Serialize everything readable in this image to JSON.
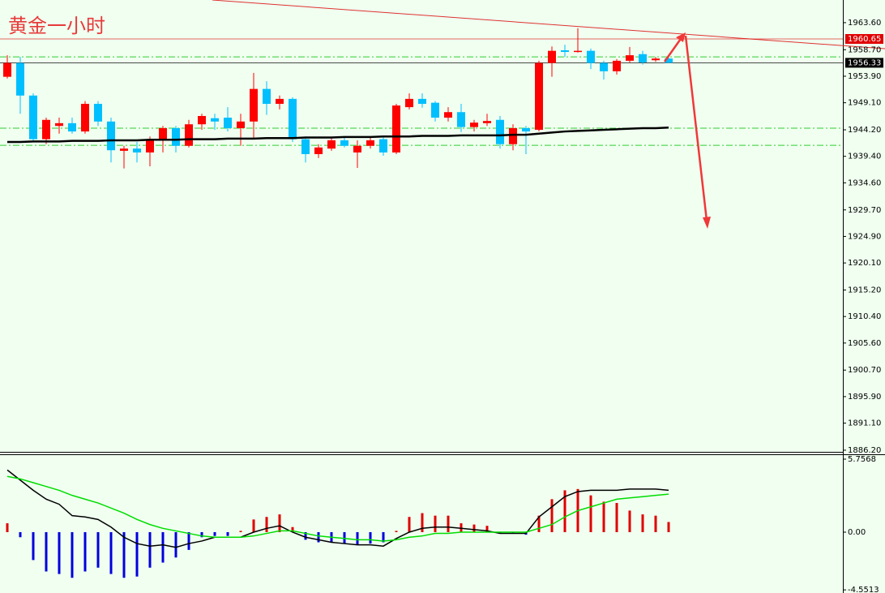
{
  "chart_data": [
    {
      "type": "candlestick",
      "title": "黄金一小时",
      "open": [
        1953.8,
        1956.3,
        1950.4,
        1942.5,
        1944.9,
        1945.4,
        1943.9,
        1948.9,
        1945.7,
        1940.4,
        1940.8,
        1940.1,
        1942.5,
        1944.5,
        1941.3,
        1945.2,
        1946.3,
        1946.4,
        1944.5,
        1945.7,
        1951.6,
        1948.9,
        1949.8,
        1942.5,
        1939.8,
        1940.8,
        1942.3,
        1940.1,
        1941.3,
        1942.5,
        1940.1,
        1948.3,
        1949.8,
        1949.1,
        1946.4,
        1947.4,
        1944.7,
        1945.4,
        1946.0,
        1941.6,
        1944.5,
        1944.2,
        1956.3,
        1958.6,
        1958.3,
        1958.5,
        1956.3,
        1954.8,
        1956.7,
        1957.9,
        1956.8,
        1957.1
      ],
      "high": [
        1957.7,
        1957.4,
        1950.8,
        1946.4,
        1946.4,
        1946.4,
        1949.4,
        1949.4,
        1946.4,
        1941.3,
        1942.0,
        1943.0,
        1944.9,
        1944.9,
        1946.0,
        1947.1,
        1947.1,
        1948.3,
        1947.1,
        1954.5,
        1953.0,
        1950.4,
        1950.1,
        1943.0,
        1941.6,
        1942.7,
        1943.0,
        1942.3,
        1943.0,
        1943.0,
        1948.9,
        1950.8,
        1950.8,
        1949.4,
        1948.3,
        1948.9,
        1946.0,
        1947.1,
        1946.7,
        1945.2,
        1944.9,
        1956.7,
        1959.3,
        1959.6,
        1962.6,
        1958.9,
        1956.7,
        1957.0,
        1959.2,
        1958.5,
        1957.4,
        1957.4
      ],
      "low": [
        1953.5,
        1947.1,
        1942.0,
        1941.6,
        1943.5,
        1943.5,
        1943.5,
        1944.9,
        1938.3,
        1937.2,
        1938.3,
        1937.6,
        1940.1,
        1940.1,
        1941.0,
        1944.2,
        1944.2,
        1943.9,
        1941.3,
        1942.7,
        1946.9,
        1947.9,
        1942.0,
        1938.3,
        1939.1,
        1940.4,
        1941.0,
        1937.3,
        1940.8,
        1939.5,
        1939.8,
        1947.9,
        1948.2,
        1945.7,
        1945.7,
        1943.8,
        1943.9,
        1944.9,
        1940.8,
        1940.5,
        1939.8,
        1943.9,
        1953.8,
        1957.4,
        1958.2,
        1955.2,
        1953.3,
        1954.2,
        1956.3,
        1956.0,
        1956.5,
        1956.3
      ],
      "close": [
        1956.3,
        1950.4,
        1942.5,
        1946.0,
        1945.4,
        1943.9,
        1948.9,
        1945.7,
        1940.5,
        1940.8,
        1940.1,
        1942.5,
        1944.5,
        1941.3,
        1945.2,
        1946.7,
        1945.7,
        1944.5,
        1945.7,
        1951.6,
        1948.9,
        1949.8,
        1942.5,
        1939.8,
        1941.0,
        1942.3,
        1941.3,
        1941.3,
        1942.3,
        1940.1,
        1948.6,
        1949.8,
        1948.9,
        1946.4,
        1947.4,
        1944.7,
        1945.5,
        1945.8,
        1941.6,
        1944.5,
        1943.9,
        1956.3,
        1958.5,
        1958.3,
        1958.5,
        1956.3,
        1954.8,
        1956.7,
        1957.7,
        1956.4,
        1957.1,
        1956.33
      ],
      "up_color": "#ff0000",
      "down_color": "#00bfff",
      "ma": {
        "color": "#000000",
        "values": [
          1942.0,
          1942.0,
          1942.1,
          1942.1,
          1942.1,
          1942.2,
          1942.2,
          1942.2,
          1942.3,
          1942.3,
          1942.3,
          1942.4,
          1942.4,
          1942.4,
          1942.5,
          1942.5,
          1942.5,
          1942.6,
          1942.6,
          1942.6,
          1942.7,
          1942.7,
          1942.7,
          1942.8,
          1942.8,
          1942.8,
          1942.9,
          1942.9,
          1942.9,
          1943.0,
          1943.0,
          1943.0,
          1943.1,
          1943.1,
          1943.1,
          1943.2,
          1943.2,
          1943.2,
          1943.2,
          1943.3,
          1943.3,
          1943.5,
          1943.7,
          1943.9,
          1944.0,
          1944.1,
          1944.2,
          1944.3,
          1944.4,
          1944.5,
          1944.5,
          1944.6
        ]
      },
      "price_lines": [
        {
          "value": 1960.65,
          "color": "#e00000"
        },
        {
          "value": 1956.33,
          "color": "#000000"
        }
      ],
      "levels": {
        "color": "#32cd32",
        "values": [
          1957.4,
          1944.5,
          1941.4
        ]
      },
      "ylim": [
        1885.9,
        1967.7
      ],
      "yticks": [
        {
          "value": 1963.6,
          "label": "1963.60"
        },
        {
          "value": 1958.7,
          "label": "1958.70"
        },
        {
          "value": 1953.9,
          "label": "1953.90"
        },
        {
          "value": 1949.1,
          "label": "1949.10"
        },
        {
          "value": 1944.2,
          "label": "1944.20"
        },
        {
          "value": 1939.4,
          "label": "1939.40"
        },
        {
          "value": 1934.6,
          "label": "1934.60"
        },
        {
          "value": 1929.7,
          "label": "1929.70"
        },
        {
          "value": 1924.9,
          "label": "1924.90"
        },
        {
          "value": 1920.1,
          "label": "1920.10"
        },
        {
          "value": 1915.2,
          "label": "1915.20"
        },
        {
          "value": 1910.4,
          "label": "1910.40"
        },
        {
          "value": 1905.6,
          "label": "1905.60"
        },
        {
          "value": 1900.7,
          "label": "1900.70"
        },
        {
          "value": 1895.9,
          "label": "1895.90"
        },
        {
          "value": 1891.1,
          "label": "1891.10"
        },
        {
          "value": 1886.2,
          "label": "1886.20"
        }
      ]
    },
    {
      "type": "macd",
      "histogram": {
        "up_color": "#e00000",
        "down_color": "#0000dd",
        "values": [
          0.7,
          -0.4,
          -2.2,
          -3.1,
          -3.3,
          -3.6,
          -3.1,
          -2.8,
          -3.3,
          -3.6,
          -3.5,
          -2.8,
          -2.4,
          -2.0,
          -1.4,
          -0.4,
          -0.3,
          -0.3,
          0.1,
          1.0,
          1.2,
          1.4,
          0.4,
          -0.6,
          -0.8,
          -0.8,
          -0.9,
          -1.0,
          -0.9,
          -0.8,
          0.1,
          1.2,
          1.5,
          1.3,
          1.3,
          0.7,
          0.6,
          0.5,
          -0.1,
          -0.1,
          -0.2,
          1.3,
          2.6,
          3.3,
          3.4,
          2.9,
          2.4,
          2.3,
          1.7,
          1.4,
          1.3,
          0.8
        ]
      },
      "series": [
        {
          "color": "#000000",
          "values": [
            4.9,
            4.1,
            3.3,
            2.6,
            2.2,
            1.3,
            1.2,
            1.0,
            0.4,
            -0.4,
            -0.9,
            -1.1,
            -1.0,
            -1.2,
            -0.9,
            -0.7,
            -0.4,
            -0.4,
            -0.4,
            0.0,
            0.3,
            0.5,
            0.0,
            -0.4,
            -0.6,
            -0.8,
            -0.9,
            -1.0,
            -1.0,
            -1.1,
            -0.5,
            0.0,
            0.3,
            0.4,
            0.4,
            0.3,
            0.2,
            0.1,
            -0.1,
            -0.1,
            -0.1,
            1.2,
            2.0,
            2.8,
            3.2,
            3.3,
            3.3,
            3.3,
            3.4,
            3.4,
            3.4,
            3.3
          ]
        },
        {
          "color": "#00dd00",
          "values": [
            4.4,
            4.2,
            3.9,
            3.6,
            3.3,
            2.9,
            2.6,
            2.3,
            1.9,
            1.5,
            1.0,
            0.6,
            0.3,
            0.1,
            -0.1,
            -0.3,
            -0.4,
            -0.4,
            -0.4,
            -0.3,
            -0.1,
            0.1,
            0.1,
            -0.1,
            -0.3,
            -0.4,
            -0.5,
            -0.6,
            -0.6,
            -0.7,
            -0.6,
            -0.4,
            -0.3,
            -0.1,
            -0.1,
            0.0,
            0.0,
            0.0,
            0.0,
            0.0,
            0.0,
            0.3,
            0.6,
            1.2,
            1.7,
            2.0,
            2.3,
            2.6,
            2.7,
            2.8,
            2.9,
            3.0
          ]
        }
      ],
      "ylim": [
        -4.67,
        6.14
      ],
      "yticks": [
        5.7568,
        {
          "value": 0,
          "label": "0.00"
        },
        -4.5513
      ]
    }
  ]
}
